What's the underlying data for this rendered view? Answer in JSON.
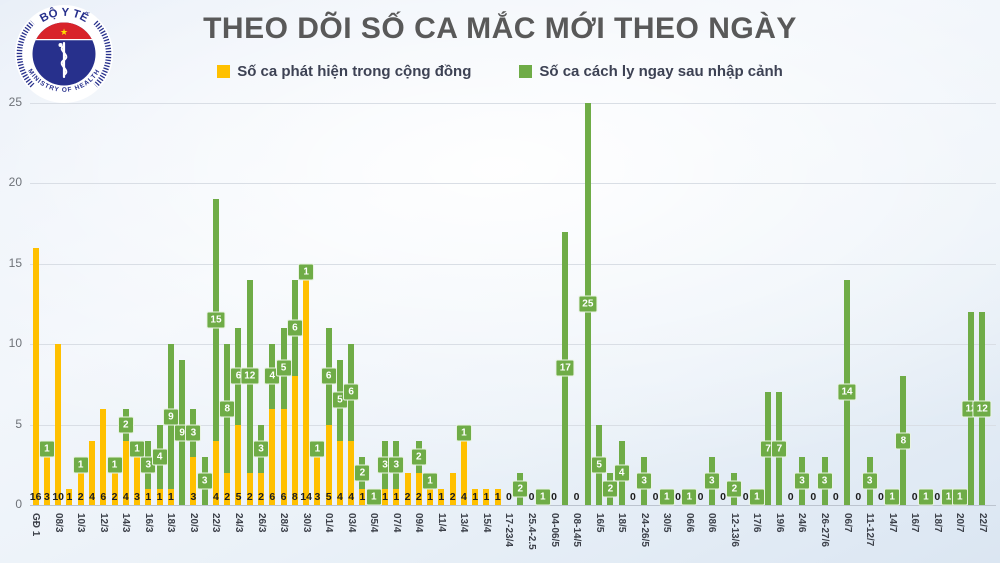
{
  "header": {
    "title": "THEO DÕI SỐ CA MẮC MỚI THEO NGÀY",
    "logo": {
      "top_text": "BỘ Y TẾ",
      "bottom_text": "MINISTRY OF HEALTH"
    }
  },
  "legend": {
    "items": [
      {
        "label": "Số ca phát hiện trong cộng đồng",
        "series": "community"
      },
      {
        "label": "Số ca cách ly ngay sau nhập cảnh",
        "series": "imported"
      }
    ]
  },
  "colors": {
    "community": "#FFC000",
    "imported": "#6FAC47",
    "title_text": "#595959",
    "legend_text": "#3D4254",
    "grid_line": "#D9DEE5",
    "logo_navy": "#27308C",
    "logo_red": "#D8232A",
    "star_yellow": "#FFDE00"
  },
  "chart_data": {
    "type": "bar",
    "stacked": true,
    "title": "THEO DÕI SỐ CA MẮC MỚI THEO NGÀY",
    "xlabel": "",
    "ylabel": "",
    "ylim": [
      0,
      25
    ],
    "yticks": [
      0,
      5,
      10,
      15,
      20,
      25
    ],
    "grid": "horizontal",
    "legend_position": "top",
    "series": [
      {
        "name": "Số ca phát hiện trong cộng đồng",
        "key": "community",
        "color": "#FFC000"
      },
      {
        "name": "Số ca cách ly ngay sau nhập cảnh",
        "key": "imported",
        "color": "#6FAC47"
      }
    ],
    "bars": [
      {
        "label": "GĐ 1",
        "community": 16,
        "imported": 0
      },
      {
        "label": null,
        "community": 3,
        "imported": 1
      },
      {
        "label": "08/3",
        "community": 10,
        "imported": 0
      },
      {
        "label": null,
        "community": 1,
        "imported": 0
      },
      {
        "label": "10/3",
        "community": 2,
        "imported": 1
      },
      {
        "label": null,
        "community": 4,
        "imported": 0
      },
      {
        "label": "12/3",
        "community": 6,
        "imported": 0
      },
      {
        "label": null,
        "community": 2,
        "imported": 1
      },
      {
        "label": "14/3",
        "community": 4,
        "imported": 2
      },
      {
        "label": null,
        "community": 3,
        "imported": 1
      },
      {
        "label": "16/3",
        "community": 1,
        "imported": 3
      },
      {
        "label": null,
        "community": 1,
        "imported": 4
      },
      {
        "label": "18/3",
        "community": 1,
        "imported": 9
      },
      {
        "label": null,
        "community": 0,
        "imported": 9
      },
      {
        "label": "20/3",
        "community": 3,
        "imported": 3
      },
      {
        "label": null,
        "community": 0,
        "imported": 3
      },
      {
        "label": "22/3",
        "community": 4,
        "imported": 15
      },
      {
        "label": null,
        "community": 2,
        "imported": 8
      },
      {
        "label": "24/3",
        "community": 5,
        "imported": 6
      },
      {
        "label": null,
        "community": 2,
        "imported": 12
      },
      {
        "label": "26/3",
        "community": 2,
        "imported": 3
      },
      {
        "label": null,
        "community": 6,
        "imported": 4
      },
      {
        "label": "28/3",
        "community": 6,
        "imported": 5
      },
      {
        "label": null,
        "community": 8,
        "imported": 6
      },
      {
        "label": "30/3",
        "community": 14,
        "imported": 1
      },
      {
        "label": null,
        "community": 3,
        "imported": 1
      },
      {
        "label": "01/4",
        "community": 5,
        "imported": 6
      },
      {
        "label": null,
        "community": 4,
        "imported": 5
      },
      {
        "label": "03/4",
        "community": 4,
        "imported": 6
      },
      {
        "label": null,
        "community": 1,
        "imported": 2
      },
      {
        "label": "05/4",
        "community": 0,
        "imported": 1
      },
      {
        "label": null,
        "community": 1,
        "imported": 3
      },
      {
        "label": "07/4",
        "community": 1,
        "imported": 3
      },
      {
        "label": null,
        "community": 2,
        "imported": 0
      },
      {
        "label": "09/4",
        "community": 2,
        "imported": 2
      },
      {
        "label": null,
        "community": 1,
        "imported": 1
      },
      {
        "label": "11/4",
        "community": 1,
        "imported": 0
      },
      {
        "label": null,
        "community": 2,
        "imported": 0
      },
      {
        "label": "13/4",
        "community": 4,
        "imported": 1
      },
      {
        "label": null,
        "community": 1,
        "imported": 0
      },
      {
        "label": "15/4",
        "community": 1,
        "imported": 0
      },
      {
        "label": null,
        "community": 1,
        "imported": 0
      },
      {
        "label": "17-23/4",
        "community": 0,
        "imported": 0
      },
      {
        "label": null,
        "community": 0,
        "imported": 2
      },
      {
        "label": "25.4-2.5",
        "community": 0,
        "imported": 0
      },
      {
        "label": null,
        "community": 0,
        "imported": 1
      },
      {
        "label": "04-06/5",
        "community": 0,
        "imported": 0
      },
      {
        "label": null,
        "community": 0,
        "imported": 17
      },
      {
        "label": "08-14/5",
        "community": 0,
        "imported": 0
      },
      {
        "label": null,
        "community": 0,
        "imported": 25
      },
      {
        "label": "16/5",
        "community": 0,
        "imported": 5
      },
      {
        "label": null,
        "community": 0,
        "imported": 2
      },
      {
        "label": "18/5",
        "community": 0,
        "imported": 4
      },
      {
        "label": null,
        "community": 0,
        "imported": 0
      },
      {
        "label": "24-26/5",
        "community": 0,
        "imported": 3
      },
      {
        "label": null,
        "community": 0,
        "imported": 0
      },
      {
        "label": "30/5",
        "community": 0,
        "imported": 1
      },
      {
        "label": null,
        "community": 0,
        "imported": 0
      },
      {
        "label": "06/6",
        "community": 0,
        "imported": 1
      },
      {
        "label": null,
        "community": 0,
        "imported": 0
      },
      {
        "label": "08/6",
        "community": 0,
        "imported": 3
      },
      {
        "label": null,
        "community": 0,
        "imported": 0
      },
      {
        "label": "12-13/6",
        "community": 0,
        "imported": 2
      },
      {
        "label": null,
        "community": 0,
        "imported": 0
      },
      {
        "label": "17/6",
        "community": 0,
        "imported": 1
      },
      {
        "label": null,
        "community": 0,
        "imported": 7
      },
      {
        "label": "19/6",
        "community": 0,
        "imported": 7
      },
      {
        "label": null,
        "community": 0,
        "imported": 0
      },
      {
        "label": "24/6",
        "community": 0,
        "imported": 3
      },
      {
        "label": null,
        "community": 0,
        "imported": 0
      },
      {
        "label": "26-27/6",
        "community": 0,
        "imported": 3
      },
      {
        "label": null,
        "community": 0,
        "imported": 0
      },
      {
        "label": "06/7",
        "community": 0,
        "imported": 14
      },
      {
        "label": null,
        "community": 0,
        "imported": 0
      },
      {
        "label": "11-12/7",
        "community": 0,
        "imported": 3
      },
      {
        "label": null,
        "community": 0,
        "imported": 0
      },
      {
        "label": "14/7",
        "community": 0,
        "imported": 1
      },
      {
        "label": null,
        "community": 0,
        "imported": 8
      },
      {
        "label": "16/7",
        "community": 0,
        "imported": 0
      },
      {
        "label": null,
        "community": 0,
        "imported": 1
      },
      {
        "label": "18/7",
        "community": 0,
        "imported": 0
      },
      {
        "label": null,
        "community": 0,
        "imported": 1
      },
      {
        "label": "20/7",
        "community": 0,
        "imported": 1
      },
      {
        "label": null,
        "community": 0,
        "imported": 12
      },
      {
        "label": "22/7",
        "community": 0,
        "imported": 12
      }
    ]
  }
}
